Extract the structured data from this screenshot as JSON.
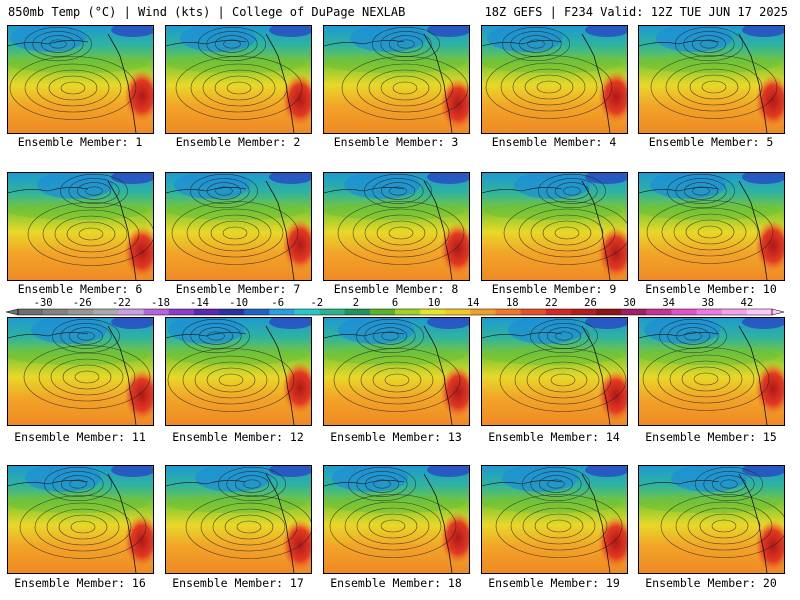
{
  "header": {
    "left": "850mb Temp (°C) | Wind (kts) | College of DuPage NEXLAB",
    "right": "18Z GEFS | F234 Valid: 12Z TUE JUN 17 2025"
  },
  "members": [
    "Ensemble Member: 1",
    "Ensemble Member: 2",
    "Ensemble Member: 3",
    "Ensemble Member: 4",
    "Ensemble Member: 5",
    "Ensemble Member: 6",
    "Ensemble Member: 7",
    "Ensemble Member: 8",
    "Ensemble Member: 9",
    "Ensemble Member: 10",
    "Ensemble Member: 11",
    "Ensemble Member: 12",
    "Ensemble Member: 13",
    "Ensemble Member: 14",
    "Ensemble Member: 15",
    "Ensemble Member: 16",
    "Ensemble Member: 17",
    "Ensemble Member: 18",
    "Ensemble Member: 19",
    "Ensemble Member: 20"
  ],
  "colorbar": {
    "labels": [
      "-30",
      "-26",
      "-22",
      "-18",
      "-14",
      "-10",
      "-6",
      "-2",
      "2",
      "6",
      "10",
      "14",
      "18",
      "22",
      "26",
      "30",
      "34",
      "38",
      "42"
    ],
    "colors": [
      "#6e6e6e",
      "#828282",
      "#969696",
      "#aaaaaa",
      "#c8a0e6",
      "#b464dc",
      "#8c3cc8",
      "#5a28b4",
      "#2832a0",
      "#1e64c8",
      "#28a0e6",
      "#28c8c8",
      "#28b48c",
      "#1e965a",
      "#5ab428",
      "#a0d228",
      "#e6e628",
      "#f0c828",
      "#f0a028",
      "#f07828",
      "#e65028",
      "#d22828",
      "#b41e1e",
      "#8c1414",
      "#a01e64",
      "#c83296",
      "#e650c8",
      "#f078e6",
      "#f5a0f0",
      "#fac8fa"
    ]
  }
}
